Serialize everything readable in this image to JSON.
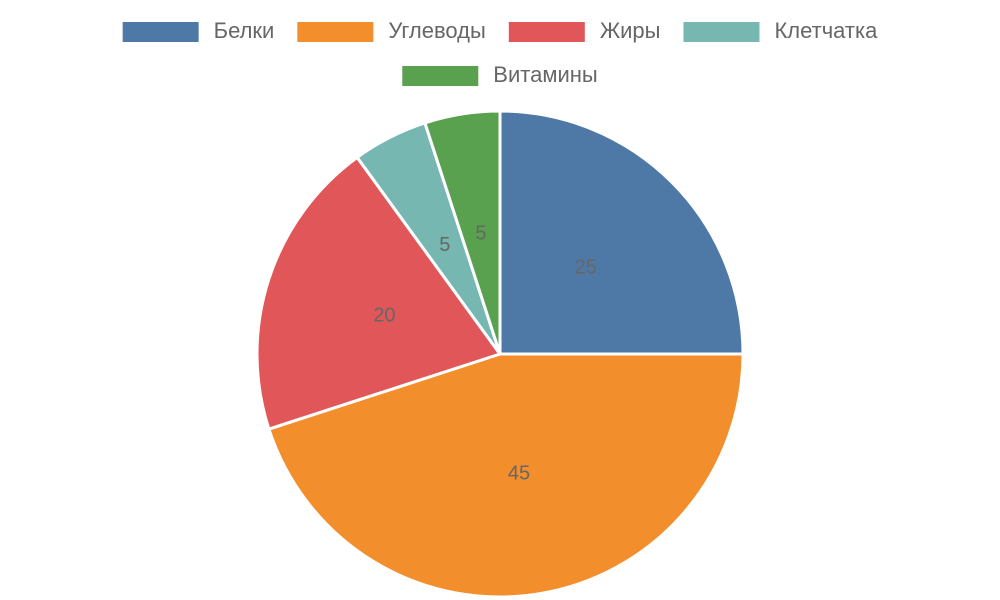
{
  "chart_data": {
    "type": "pie",
    "categories": [
      "Белки",
      "Углеводы",
      "Жиры",
      "Клетчатка",
      "Витамины"
    ],
    "values": [
      25,
      45,
      20,
      5,
      5
    ],
    "colors": [
      "#4e79a7",
      "#f28e2b",
      "#e15759",
      "#76b7b2",
      "#59a14f"
    ],
    "legend": "top"
  }
}
